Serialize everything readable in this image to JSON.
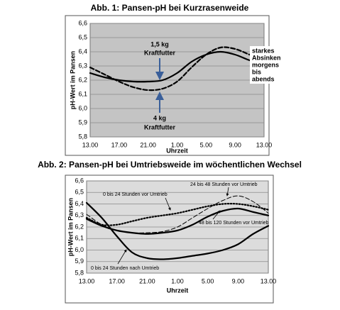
{
  "chart_data": [
    {
      "type": "line",
      "title": "Abb. 1: Pansen-pH bei Kurzrasenweide",
      "x_label": "Uhrzeit",
      "y_label": "pH-Wert im Pansen",
      "categories": [
        "13.00",
        null,
        "17.00",
        null,
        "21.00",
        null,
        "1.00",
        null,
        "5.00",
        null,
        "9.00",
        null,
        "13.00"
      ],
      "ylim": [
        5.8,
        6.6
      ],
      "yticks": [
        {
          "value": 5.8,
          "label": "5,8"
        },
        {
          "value": 5.9,
          "label": "5,9"
        },
        {
          "value": 6.0,
          "label": "6,0"
        },
        {
          "value": 6.1,
          "label": "6,1"
        },
        {
          "value": 6.2,
          "label": "6,2"
        },
        {
          "value": 6.3,
          "label": "6,3"
        },
        {
          "value": 6.4,
          "label": "6,4"
        },
        {
          "value": 6.5,
          "label": "6,5"
        },
        {
          "value": 6.6,
          "label": "6,6"
        }
      ],
      "grid": true,
      "background": "#c4c4c4",
      "series": [
        {
          "color": "#000000",
          "style": "solid",
          "weight": "thick",
          "values": [
            6.25,
            6.22,
            6.2,
            6.19,
            6.19,
            6.2,
            6.25,
            6.33,
            6.38,
            6.4,
            6.38,
            6.34,
            6.31
          ]
        },
        {
          "color": "#000000",
          "style": "dashed",
          "weight": "thick",
          "values": [
            6.29,
            6.24,
            6.19,
            6.15,
            6.13,
            6.14,
            6.19,
            6.29,
            6.38,
            6.43,
            6.42,
            6.38,
            6.34
          ]
        }
      ],
      "annotations": [
        "1,5 kg",
        "Kraftfutter",
        "4 kg",
        "Kraftfutter",
        "starkes",
        "Absinken",
        "morgens",
        "bis",
        "abends"
      ]
    },
    {
      "type": "line",
      "title": "Abb. 2: Pansen-pH bei Umtriebsweide im wöchentlichen Wechsel",
      "x_label": "Uhrzeit",
      "y_label": "pH-Wert im Pansen",
      "categories": [
        "13.00",
        null,
        "17.00",
        null,
        "21.00",
        null,
        "1.00",
        null,
        "5.00",
        null,
        "9.00",
        null,
        "13.00"
      ],
      "ylim": [
        5.8,
        6.6
      ],
      "yticks": [
        {
          "value": 5.8,
          "label": "5,8"
        },
        {
          "value": 5.9,
          "label": "5,9"
        },
        {
          "value": 6.0,
          "label": "6,0"
        },
        {
          "value": 6.1,
          "label": "6,1"
        },
        {
          "value": 6.2,
          "label": "6,2"
        },
        {
          "value": 6.3,
          "label": "6,3"
        },
        {
          "value": 6.4,
          "label": "6,4"
        },
        {
          "value": 6.5,
          "label": "6,5"
        },
        {
          "value": 6.6,
          "label": "6,6"
        }
      ],
      "grid": true,
      "background": "#dcdcdc",
      "series": [
        {
          "name": "0 bis 24 Stunden nach Umtrieb",
          "color": "#000000",
          "style": "solid",
          "weight": "thick",
          "values": [
            6.41,
            6.28,
            6.12,
            5.98,
            5.93,
            5.92,
            5.93,
            5.95,
            5.97,
            6.0,
            6.05,
            6.14,
            6.21
          ]
        },
        {
          "name": "0 bis 24 Stunden vor Umtrieb",
          "color": "#000000",
          "style": "dotted",
          "weight": "thick",
          "values": [
            6.28,
            6.22,
            6.22,
            6.25,
            6.28,
            6.3,
            6.32,
            6.35,
            6.38,
            6.4,
            6.4,
            6.38,
            6.35
          ]
        },
        {
          "name": "24 bis 48 Stunden vor Umtrieb",
          "color": "#000000",
          "style": "dashed",
          "weight": "thin",
          "values": [
            6.31,
            6.22,
            6.17,
            6.15,
            6.15,
            6.16,
            6.2,
            6.28,
            6.36,
            6.43,
            6.47,
            6.42,
            6.32
          ]
        },
        {
          "name": "48 bis 120 Stunden vor Umtrieb",
          "color": "#000000",
          "style": "solid",
          "weight": "thick",
          "values": [
            6.27,
            6.21,
            6.17,
            6.15,
            6.14,
            6.15,
            6.17,
            6.22,
            6.29,
            6.34,
            6.36,
            6.33,
            6.3
          ]
        }
      ]
    }
  ]
}
